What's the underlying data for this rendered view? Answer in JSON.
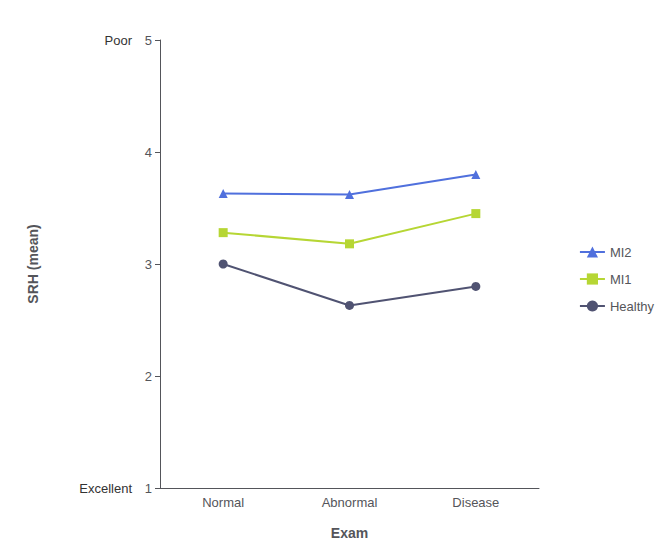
{
  "chart_data": {
    "type": "line",
    "categories": [
      "Normal",
      "Abnormal",
      "Disease"
    ],
    "series": [
      {
        "name": "MI2",
        "values": [
          3.63,
          3.62,
          3.8
        ],
        "marker": "triangle"
      },
      {
        "name": "MI1",
        "values": [
          3.28,
          3.18,
          3.45
        ],
        "marker": "square"
      },
      {
        "name": "Healthy",
        "values": [
          3.0,
          2.63,
          2.8
        ],
        "marker": "circle"
      }
    ],
    "xlabel": "Exam",
    "ylabel": "SRH (mean)",
    "ylim": [
      1,
      5
    ],
    "yticks": [
      1,
      2,
      3,
      4,
      5
    ],
    "grid": false,
    "legend": "right",
    "annotations": [
      {
        "text": "Poor",
        "y": 5
      },
      {
        "text": "Excellent",
        "y": 1
      }
    ]
  }
}
